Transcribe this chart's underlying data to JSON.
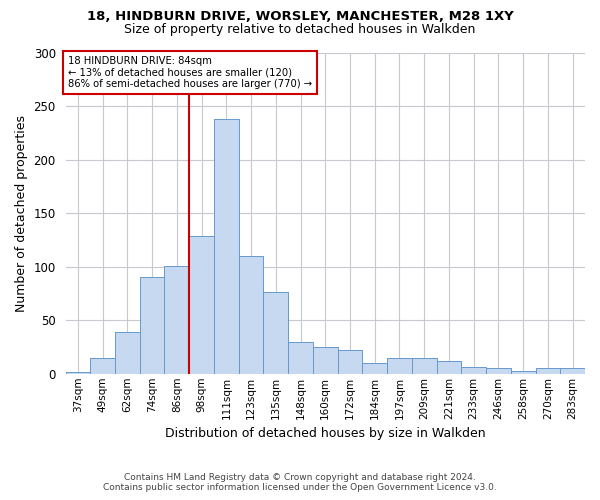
{
  "title1": "18, HINDBURN DRIVE, WORSLEY, MANCHESTER, M28 1XY",
  "title2": "Size of property relative to detached houses in Walkden",
  "xlabel": "Distribution of detached houses by size in Walkden",
  "ylabel": "Number of detached properties",
  "footer1": "Contains HM Land Registry data © Crown copyright and database right 2024.",
  "footer2": "Contains public sector information licensed under the Open Government Licence v3.0.",
  "annotation_line1": "18 HINDBURN DRIVE: 84sqm",
  "annotation_line2": "← 13% of detached houses are smaller (120)",
  "annotation_line3": "86% of semi-detached houses are larger (770) →",
  "bar_values": [
    2,
    15,
    39,
    90,
    101,
    129,
    238,
    110,
    76,
    30,
    25,
    22,
    10,
    15,
    15,
    12,
    6,
    5,
    3,
    5,
    5,
    1
  ],
  "categories": [
    "37sqm",
    "49sqm",
    "62sqm",
    "74sqm",
    "86sqm",
    "98sqm",
    "111sqm",
    "123sqm",
    "135sqm",
    "148sqm",
    "160sqm",
    "172sqm",
    "184sqm",
    "197sqm",
    "209sqm",
    "221sqm",
    "233sqm",
    "246sqm",
    "258sqm",
    "270sqm",
    "283sqm",
    ""
  ],
  "bar_color": "#c6d9f0",
  "bar_edge_color": "#6699cc",
  "vline_color": "#cc0000",
  "annotation_box_color": "#cc0000",
  "background_color": "#ffffff",
  "grid_color": "#c8c8d0",
  "ylim": [
    0,
    300
  ],
  "yticks": [
    0,
    50,
    100,
    150,
    200,
    250,
    300
  ],
  "vline_pos": 4.5,
  "figwidth": 6.0,
  "figheight": 5.0,
  "dpi": 100
}
